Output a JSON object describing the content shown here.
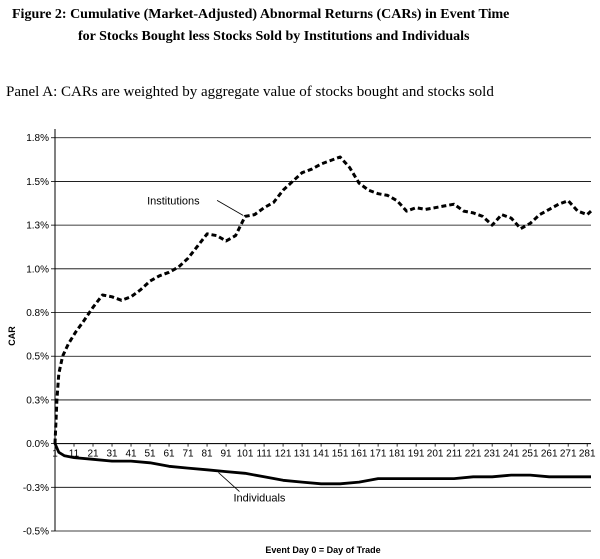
{
  "header": {
    "title_line1": "Figure 2: Cumulative (Market-Adjusted) Abnormal Returns (CARs) in Event Time",
    "title_line2": "for Stocks Bought less Stocks Sold by Institutions and Individuals",
    "panel": "Panel A: CARs are weighted by aggregate value of stocks bought and stocks sold"
  },
  "chart_data": {
    "type": "line",
    "xlabel": "Event Day 0 = Day of Trade",
    "ylabel": "CAR",
    "xlim": [
      1,
      283
    ],
    "ylim": [
      -0.5,
      1.8
    ],
    "yticks": [
      {
        "v": -0.5,
        "label": "-0.5%"
      },
      {
        "v": -0.25,
        "label": "-0.3%"
      },
      {
        "v": 0.0,
        "label": "0.0%"
      },
      {
        "v": 0.25,
        "label": "0.3%"
      },
      {
        "v": 0.5,
        "label": "0.5%"
      },
      {
        "v": 0.75,
        "label": "0.8%"
      },
      {
        "v": 1.0,
        "label": "1.0%"
      },
      {
        "v": 1.25,
        "label": "1.3%"
      },
      {
        "v": 1.5,
        "label": "1.5%"
      },
      {
        "v": 1.75,
        "label": "1.8%"
      }
    ],
    "xtick_labels": [
      "1",
      "11",
      "21",
      "31",
      "41",
      "51",
      "61",
      "71",
      "81",
      "91",
      "101",
      "111",
      "121",
      "131",
      "141",
      "151",
      "161",
      "171",
      "181",
      "191",
      "201",
      "211",
      "221",
      "231",
      "241",
      "251",
      "261",
      "271",
      "281"
    ],
    "grid": "horizontal",
    "series": [
      {
        "name": "Institutions",
        "style": "dashed",
        "x": [
          1,
          2,
          3,
          5,
          8,
          12,
          16,
          21,
          26,
          31,
          36,
          41,
          46,
          51,
          56,
          61,
          66,
          71,
          76,
          81,
          86,
          91,
          96,
          101,
          106,
          111,
          116,
          121,
          126,
          131,
          136,
          141,
          146,
          151,
          156,
          161,
          166,
          171,
          176,
          181,
          186,
          191,
          196,
          201,
          206,
          211,
          216,
          221,
          226,
          231,
          236,
          241,
          246,
          251,
          256,
          261,
          266,
          271,
          276,
          281,
          283
        ],
        "values": [
          0.0,
          0.25,
          0.4,
          0.5,
          0.57,
          0.64,
          0.7,
          0.78,
          0.85,
          0.84,
          0.82,
          0.84,
          0.88,
          0.93,
          0.96,
          0.98,
          1.01,
          1.06,
          1.13,
          1.2,
          1.19,
          1.16,
          1.19,
          1.3,
          1.31,
          1.35,
          1.38,
          1.45,
          1.5,
          1.55,
          1.57,
          1.6,
          1.62,
          1.64,
          1.58,
          1.49,
          1.45,
          1.43,
          1.42,
          1.39,
          1.33,
          1.35,
          1.34,
          1.35,
          1.36,
          1.37,
          1.33,
          1.32,
          1.3,
          1.25,
          1.31,
          1.29,
          1.23,
          1.26,
          1.31,
          1.34,
          1.37,
          1.39,
          1.33,
          1.31,
          1.33
        ]
      },
      {
        "name": "Individuals",
        "style": "solid",
        "x": [
          1,
          3,
          6,
          11,
          21,
          31,
          41,
          51,
          61,
          71,
          81,
          91,
          101,
          111,
          121,
          131,
          141,
          151,
          161,
          171,
          181,
          191,
          201,
          211,
          221,
          231,
          241,
          251,
          261,
          271,
          281,
          283
        ],
        "values": [
          0.0,
          -0.05,
          -0.07,
          -0.08,
          -0.09,
          -0.1,
          -0.1,
          -0.11,
          -0.13,
          -0.14,
          -0.15,
          -0.16,
          -0.17,
          -0.19,
          -0.21,
          -0.22,
          -0.23,
          -0.23,
          -0.22,
          -0.2,
          -0.2,
          -0.2,
          -0.2,
          -0.2,
          -0.19,
          -0.19,
          -0.18,
          -0.18,
          -0.19,
          -0.19,
          -0.19,
          -0.19
        ]
      }
    ],
    "annotations": [
      {
        "text": "Institutions",
        "series": "Institutions",
        "at_x": 101
      },
      {
        "text": "Individuals",
        "series": "Individuals",
        "at_x": 87
      }
    ]
  }
}
